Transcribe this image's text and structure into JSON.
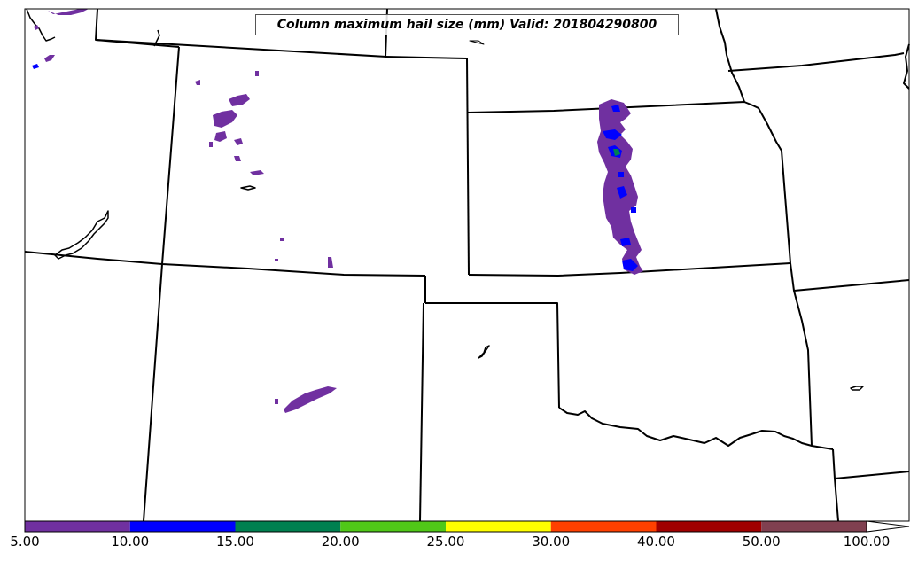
{
  "map": {
    "title": "Column maximum hail size (mm) Valid: 201804290800",
    "field": "Column maximum hail size",
    "units": "mm",
    "valid_time": "201804290800",
    "region": "Central Plains (CO, KS, NM, OK, TX panhandle)",
    "border_color": "#000000",
    "background_color": "#ffffff"
  },
  "colorbar": {
    "ticks": [
      "5.00",
      "10.00",
      "15.00",
      "20.00",
      "25.00",
      "30.00",
      "40.00",
      "50.00",
      "100.00"
    ],
    "bins": [
      {
        "min": 5,
        "max": 10,
        "color": "#7030a0"
      },
      {
        "min": 10,
        "max": 15,
        "color": "#0000ff"
      },
      {
        "min": 15,
        "max": 20,
        "color": "#008050"
      },
      {
        "min": 20,
        "max": 25,
        "color": "#50c818"
      },
      {
        "min": 25,
        "max": 30,
        "color": "#ffff00"
      },
      {
        "min": 30,
        "max": 40,
        "color": "#ff4000"
      },
      {
        "min": 40,
        "max": 50,
        "color": "#a00000"
      },
      {
        "min": 50,
        "max": 100,
        "color": "#804050"
      }
    ],
    "extend": "max"
  }
}
